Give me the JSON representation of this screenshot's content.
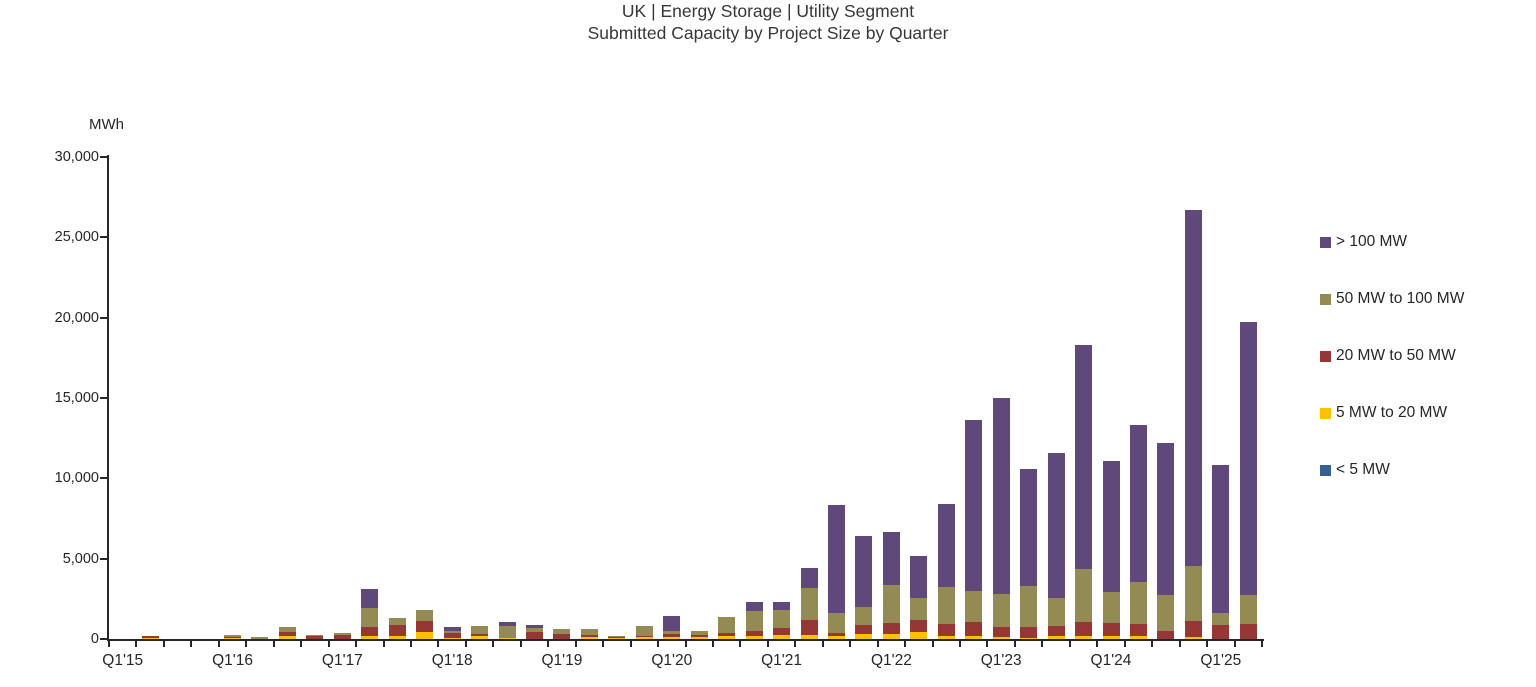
{
  "title": {
    "line1": "UK | Energy Storage | Utility Segment",
    "line2": "Submitted Capacity by Project Size by Quarter"
  },
  "chart_data": {
    "type": "bar",
    "stacked": true,
    "title": "UK | Energy Storage | Utility Segment",
    "subtitle": "Submitted Capacity by Project Size by Quarter",
    "ylabel": "MWh",
    "xlabel": "",
    "ylim": [
      0,
      30000
    ],
    "ytick_step": 5000,
    "grid": false,
    "legend_position": "right",
    "x_label_every": 4,
    "categories": [
      "Q1'15",
      "Q2'15",
      "Q3'15",
      "Q4'15",
      "Q1'16",
      "Q2'16",
      "Q3'16",
      "Q4'16",
      "Q1'17",
      "Q2'17",
      "Q3'17",
      "Q4'17",
      "Q1'18",
      "Q2'18",
      "Q3'18",
      "Q4'18",
      "Q1'19",
      "Q2'19",
      "Q3'19",
      "Q4'19",
      "Q1'20",
      "Q2'20",
      "Q3'20",
      "Q4'20",
      "Q1'21",
      "Q2'21",
      "Q3'21",
      "Q4'21",
      "Q1'22",
      "Q2'22",
      "Q3'22",
      "Q4'22",
      "Q1'23",
      "Q2'23",
      "Q3'23",
      "Q4'23",
      "Q1'24",
      "Q2'24",
      "Q3'24",
      "Q4'24",
      "Q1'25",
      "Q2'25"
    ],
    "series": [
      {
        "name": "< 5 MW",
        "color": "#376091",
        "values": [
          0,
          0,
          0,
          0,
          0,
          0,
          0,
          0,
          0,
          0,
          0,
          0,
          0,
          0,
          0,
          0,
          0,
          0,
          0,
          0,
          0,
          0,
          0,
          0,
          0,
          0,
          0,
          0,
          0,
          0,
          0,
          0,
          0,
          0,
          0,
          0,
          0,
          0,
          0,
          0,
          0,
          0
        ]
      },
      {
        "name": "5 MW to 20 MW",
        "color": "#FFC000",
        "values": [
          0,
          60,
          0,
          0,
          50,
          0,
          180,
          0,
          0,
          190,
          190,
          455,
          60,
          185,
          80,
          0,
          0,
          100,
          60,
          105,
          125,
          125,
          170,
          205,
          230,
          230,
          185,
          310,
          290,
          415,
          205,
          165,
          105,
          85,
          205,
          205,
          205,
          185,
          0,
          105,
          0,
          0
        ]
      },
      {
        "name": "20 MW to 50 MW",
        "color": "#953735",
        "values": [
          0,
          125,
          0,
          0,
          75,
          0,
          235,
          190,
          240,
          580,
          680,
          685,
          310,
          125,
          0,
          430,
          310,
          145,
          60,
          85,
          185,
          125,
          180,
          290,
          475,
          950,
          205,
          560,
          725,
          765,
          705,
          870,
          620,
          685,
          600,
          870,
          805,
          725,
          495,
          1015,
          870,
          950
        ]
      },
      {
        "name": "50 MW to 100 MW",
        "color": "#948A54",
        "values": [
          0,
          0,
          0,
          0,
          125,
          125,
          330,
          60,
          130,
          1140,
          455,
          640,
          125,
          495,
          725,
          275,
          330,
          355,
          70,
          600,
          185,
          250,
          1030,
          1240,
          1075,
          2010,
          1240,
          1100,
          2340,
          1385,
          2300,
          1925,
          2070,
          2545,
          1760,
          3310,
          1885,
          2650,
          2215,
          3415,
          745,
          1800
        ]
      },
      {
        "name": "> 100 MW",
        "color": "#5F497A",
        "values": [
          0,
          0,
          0,
          0,
          0,
          0,
          0,
          0,
          0,
          1190,
          0,
          0,
          250,
          0,
          270,
          165,
          0,
          0,
          0,
          0,
          935,
          0,
          0,
          540,
          520,
          1220,
          6690,
          4430,
          3300,
          2585,
          5170,
          10640,
          12200,
          7235,
          8985,
          13930,
          8205,
          9740,
          9520,
          22165,
          9240,
          16950
        ]
      }
    ]
  }
}
